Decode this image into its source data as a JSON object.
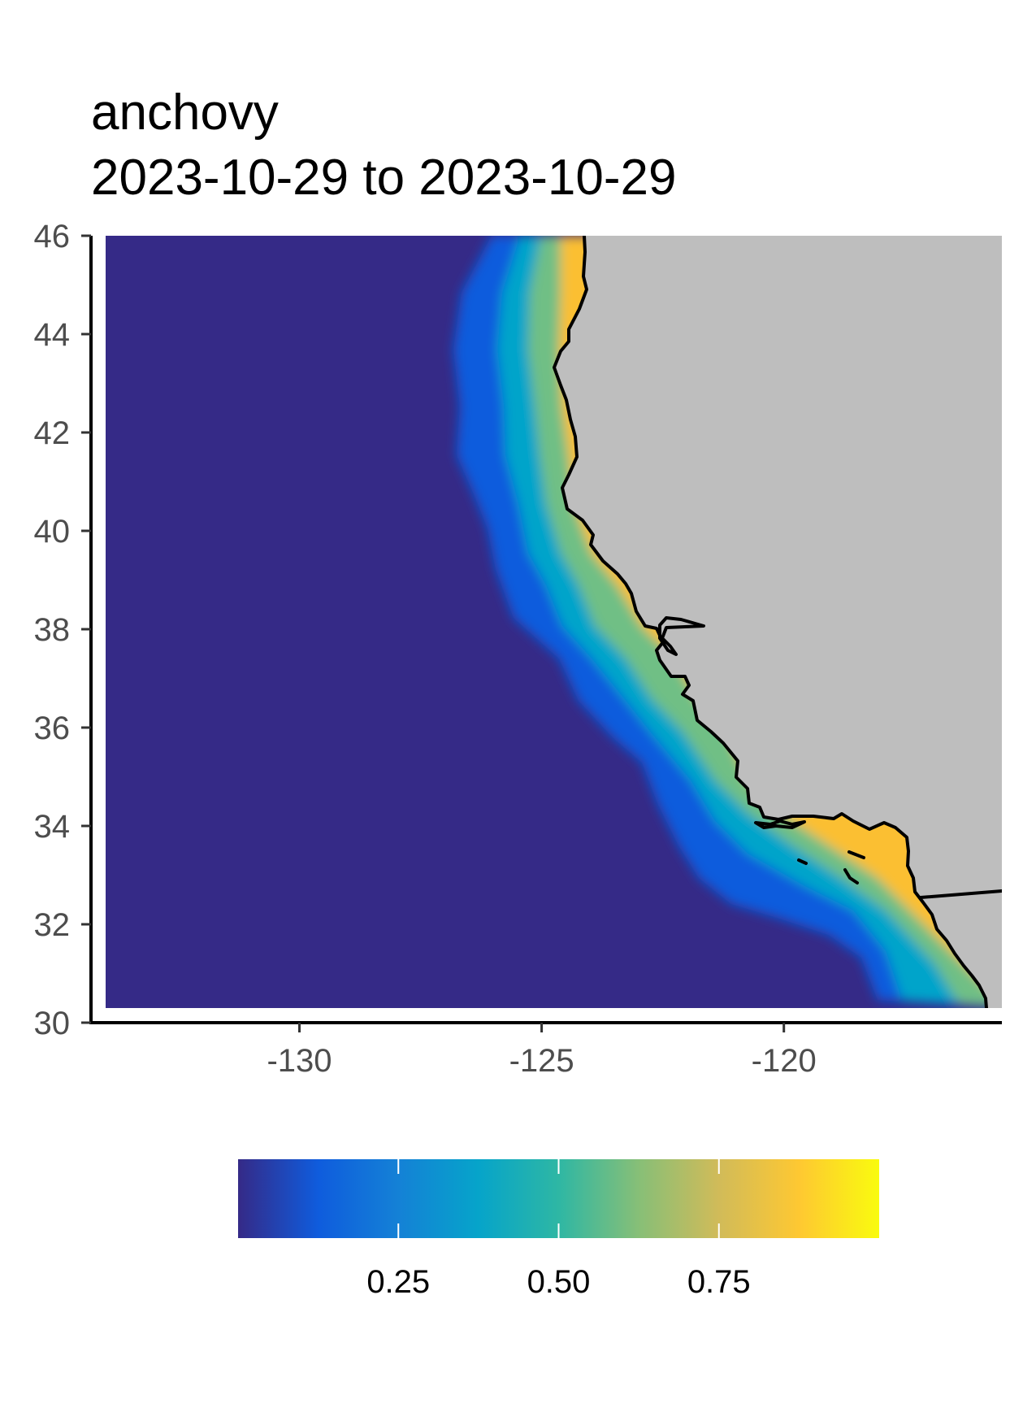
{
  "title": {
    "species": "anchovy",
    "date_range": "2023-10-29 to 2023-10-29"
  },
  "chart_data": {
    "type": "heatmap",
    "title": "anchovy\n2023-10-29 to 2023-10-29",
    "xlabel": "",
    "ylabel": "",
    "x_ticks": [
      -130,
      -125,
      -120
    ],
    "x_tick_labels": [
      "-130",
      "-125",
      "-120"
    ],
    "y_ticks": [
      30,
      32,
      34,
      36,
      38,
      40,
      42,
      44,
      46
    ],
    "y_tick_labels": [
      "30",
      "32",
      "34",
      "36",
      "38",
      "40",
      "42",
      "44",
      "46"
    ],
    "xlim": [
      -134,
      -115.5
    ],
    "ylim": [
      30,
      46
    ],
    "grid": false,
    "land_color": "#bebebe",
    "coast_color": "#000000",
    "legend": {
      "position": "bottom",
      "ticks": [
        0.25,
        0.5,
        0.75
      ],
      "tick_labels": [
        "0.25",
        "0.50",
        "0.75"
      ],
      "range": [
        0,
        1
      ],
      "colors": [
        "#352a87",
        "#0f5cdd",
        "#1481d6",
        "#06a4ca",
        "#2eb7a4",
        "#87bf77",
        "#d1bb59",
        "#fec832",
        "#f9fb0e"
      ]
    },
    "habitat_band": "Values near 0 offshore, rising toward 0.9+ along the coastline from 30°N to 46°N"
  }
}
